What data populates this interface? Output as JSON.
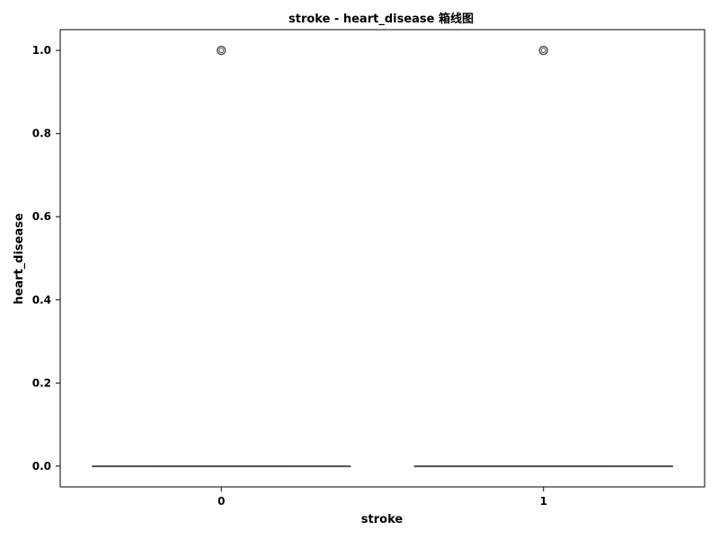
{
  "chart_data": {
    "type": "box",
    "title": "stroke - heart_disease 箱线图",
    "xlabel": "stroke",
    "ylabel": "heart_disease",
    "categories": [
      "0",
      "1"
    ],
    "ylim": [
      -0.05,
      1.05
    ],
    "yticks": [
      0.0,
      0.2,
      0.4,
      0.6,
      0.8,
      1.0
    ],
    "ytick_labels": [
      "0.0",
      "0.2",
      "0.4",
      "0.6",
      "0.8",
      "1.0"
    ],
    "boxes": [
      {
        "category": "0",
        "min": 0.0,
        "q1": 0.0,
        "median": 0.0,
        "q3": 0.0,
        "max": 0.0,
        "outliers": [
          1.0
        ]
      },
      {
        "category": "1",
        "min": 0.0,
        "q1": 0.0,
        "median": 0.0,
        "q3": 0.0,
        "max": 0.0,
        "outliers": [
          1.0
        ]
      }
    ],
    "grid": false,
    "colors": {
      "box_line": "#555555",
      "outlier": "#555555",
      "axes": "#000000"
    }
  }
}
